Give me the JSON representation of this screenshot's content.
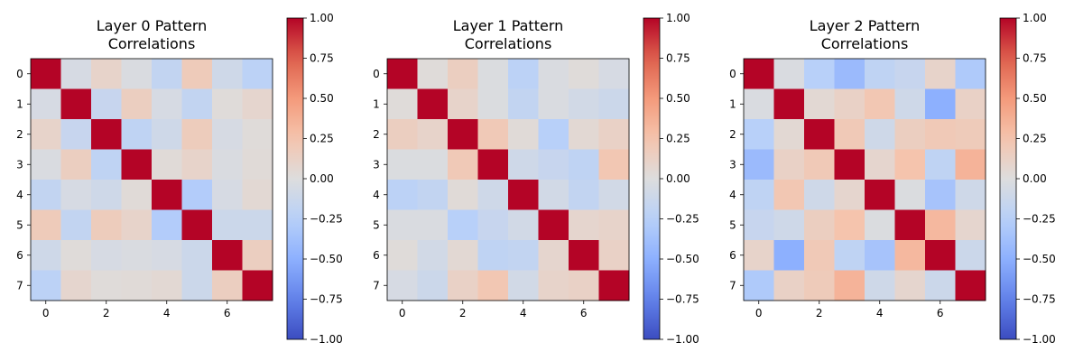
{
  "chart_data": [
    {
      "type": "heatmap",
      "title": "Layer 0 Pattern\nCorrelations",
      "xticks": [
        "0",
        "2",
        "4",
        "6"
      ],
      "yticks": [
        "0",
        "1",
        "2",
        "3",
        "4",
        "5",
        "6",
        "7"
      ],
      "colorbar": {
        "min": -1.0,
        "max": 1.0,
        "ticks": [
          "1.00",
          "0.75",
          "0.50",
          "0.25",
          "0.00",
          "−0.25",
          "−0.50",
          "−0.75",
          "−1.00"
        ],
        "colormap": "coolwarm"
      },
      "matrix": [
        [
          1.0,
          -0.05,
          0.1,
          -0.03,
          -0.18,
          0.18,
          -0.1,
          -0.22
        ],
        [
          -0.05,
          1.0,
          -0.15,
          0.15,
          -0.05,
          -0.18,
          0.02,
          0.08
        ],
        [
          0.1,
          -0.15,
          1.0,
          -0.2,
          -0.1,
          0.17,
          -0.05,
          0.02
        ],
        [
          -0.03,
          0.15,
          -0.2,
          1.0,
          0.03,
          0.1,
          -0.03,
          0.03
        ],
        [
          -0.18,
          -0.05,
          -0.1,
          0.03,
          1.0,
          -0.28,
          -0.05,
          0.05
        ],
        [
          0.18,
          -0.18,
          0.17,
          0.1,
          -0.28,
          1.0,
          -0.12,
          -0.12
        ],
        [
          -0.1,
          0.02,
          -0.05,
          -0.03,
          -0.05,
          -0.12,
          1.0,
          0.15
        ],
        [
          -0.22,
          0.08,
          0.02,
          0.03,
          0.05,
          -0.12,
          0.15,
          1.0
        ]
      ]
    },
    {
      "type": "heatmap",
      "title": "Layer 1 Pattern\nCorrelations",
      "xticks": [
        "0",
        "2",
        "4",
        "6"
      ],
      "yticks": [
        "0",
        "1",
        "2",
        "3",
        "4",
        "5",
        "6",
        "7"
      ],
      "colorbar": {
        "min": -1.0,
        "max": 1.0,
        "ticks": [
          "1.00",
          "0.75",
          "0.50",
          "0.25",
          "0.00",
          "−0.25",
          "−0.50",
          "−0.75",
          "−1.00"
        ],
        "colormap": "coolwarm"
      },
      "matrix": [
        [
          1.0,
          0.02,
          0.15,
          -0.02,
          -0.22,
          -0.03,
          0.02,
          -0.05
        ],
        [
          0.02,
          1.0,
          0.1,
          -0.02,
          -0.18,
          -0.03,
          -0.08,
          -0.12
        ],
        [
          0.15,
          0.1,
          1.0,
          0.2,
          0.03,
          -0.25,
          0.05,
          0.12
        ],
        [
          -0.02,
          -0.02,
          0.2,
          1.0,
          -0.1,
          -0.15,
          -0.2,
          0.22
        ],
        [
          -0.22,
          -0.18,
          0.03,
          -0.1,
          1.0,
          -0.08,
          -0.18,
          -0.08
        ],
        [
          -0.03,
          -0.03,
          -0.25,
          -0.15,
          -0.08,
          1.0,
          0.08,
          0.1
        ],
        [
          0.02,
          -0.08,
          0.05,
          -0.2,
          -0.18,
          0.08,
          1.0,
          0.12
        ],
        [
          -0.05,
          -0.12,
          0.12,
          0.22,
          -0.08,
          0.1,
          0.12,
          1.0
        ]
      ]
    },
    {
      "type": "heatmap",
      "title": "Layer 2 Pattern\nCorrelations",
      "xticks": [
        "0",
        "2",
        "4",
        "6"
      ],
      "yticks": [
        "0",
        "1",
        "2",
        "3",
        "4",
        "5",
        "6",
        "7"
      ],
      "colorbar": {
        "min": -1.0,
        "max": 1.0,
        "ticks": [
          "1.00",
          "0.75",
          "0.50",
          "0.25",
          "0.00",
          "−0.25",
          "−0.50",
          "−0.75",
          "−1.00"
        ],
        "colormap": "coolwarm"
      },
      "matrix": [
        [
          1.0,
          -0.03,
          -0.25,
          -0.42,
          -0.2,
          -0.15,
          0.1,
          -0.3
        ],
        [
          -0.03,
          1.0,
          0.05,
          0.12,
          0.22,
          -0.1,
          -0.5,
          0.12
        ],
        [
          -0.25,
          0.05,
          1.0,
          0.2,
          -0.1,
          0.15,
          0.2,
          0.18
        ],
        [
          -0.42,
          0.12,
          0.2,
          1.0,
          0.08,
          0.25,
          -0.2,
          0.35
        ],
        [
          -0.2,
          0.22,
          -0.1,
          0.08,
          1.0,
          -0.02,
          -0.35,
          -0.1
        ],
        [
          -0.15,
          -0.1,
          0.15,
          0.25,
          -0.02,
          1.0,
          0.32,
          0.08
        ],
        [
          0.1,
          -0.5,
          0.2,
          -0.2,
          -0.35,
          0.32,
          1.0,
          -0.12
        ],
        [
          -0.3,
          0.12,
          0.18,
          0.35,
          -0.1,
          0.08,
          -0.12,
          1.0
        ]
      ]
    }
  ]
}
